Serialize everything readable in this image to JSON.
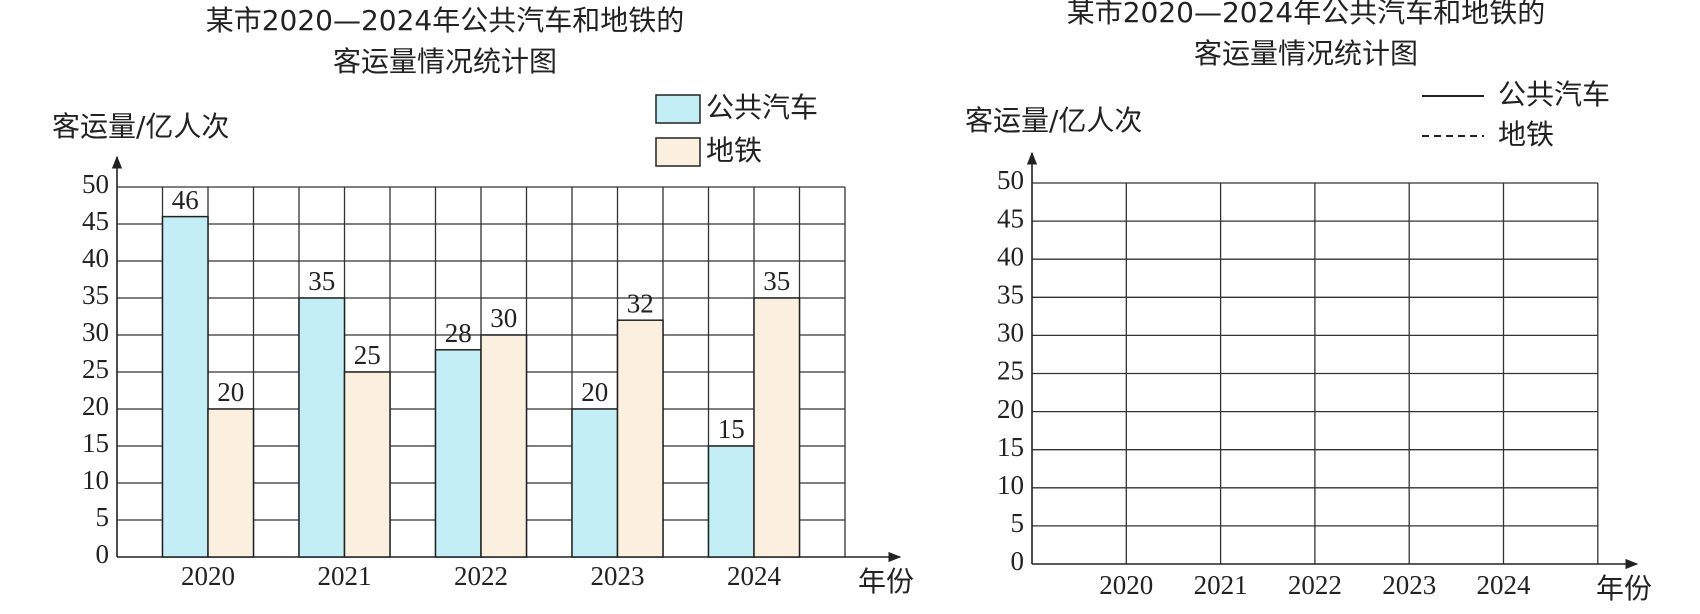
{
  "chart_data": [
    {
      "type": "bar",
      "title": [
        "某市2020—2024年公共汽车和地铁的",
        "客运量情况统计图"
      ],
      "y_label": "客运量/亿人次",
      "x_label": "年份",
      "categories": [
        "2020",
        "2021",
        "2022",
        "2023",
        "2024"
      ],
      "series": [
        {
          "name": "公共汽车",
          "color": "#c3eef6",
          "values": [
            46,
            35,
            28,
            20,
            15
          ]
        },
        {
          "name": "地铁",
          "color": "#fbf0df",
          "values": [
            20,
            25,
            30,
            32,
            35
          ]
        }
      ],
      "ylim": [
        0,
        50
      ],
      "yticks": [
        0,
        5,
        10,
        15,
        20,
        25,
        30,
        35,
        40,
        45,
        50
      ],
      "grid": true
    },
    {
      "type": "line",
      "title": [
        "某市2020—2024年公共汽车和地铁的",
        "客运量情况统计图"
      ],
      "y_label": "客运量/亿人次",
      "x_label": "年份",
      "categories": [
        "2020",
        "2021",
        "2022",
        "2023",
        "2024"
      ],
      "series": [
        {
          "name": "公共汽车",
          "color": "#222222",
          "style": "solid"
        },
        {
          "name": "地铁",
          "color": "#222222",
          "style": "dashed"
        }
      ],
      "ylim": [
        0,
        50
      ],
      "yticks": [
        0,
        5,
        10,
        15,
        20,
        25,
        30,
        35,
        40,
        45,
        50
      ],
      "grid": true
    }
  ]
}
